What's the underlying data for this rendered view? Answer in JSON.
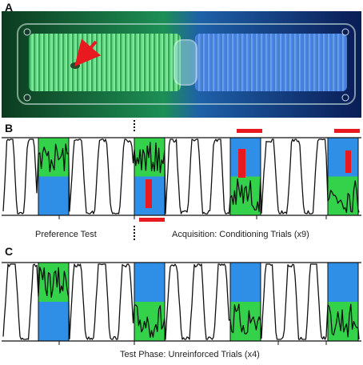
{
  "panels": {
    "a": {
      "label": "A"
    },
    "b": {
      "label": "B",
      "caption_left": "Preference Test",
      "caption_right": "Acquisition: Conditioning Trials (x9)"
    },
    "c": {
      "label": "C",
      "caption": "Test Phase: Unreinforced Trials (x4)"
    }
  },
  "colors": {
    "green": "#33d24a",
    "blue": "#2f8ee6",
    "red": "#e8191f",
    "trace": "#111111",
    "chamber_dark": "#0d2a25"
  }
}
